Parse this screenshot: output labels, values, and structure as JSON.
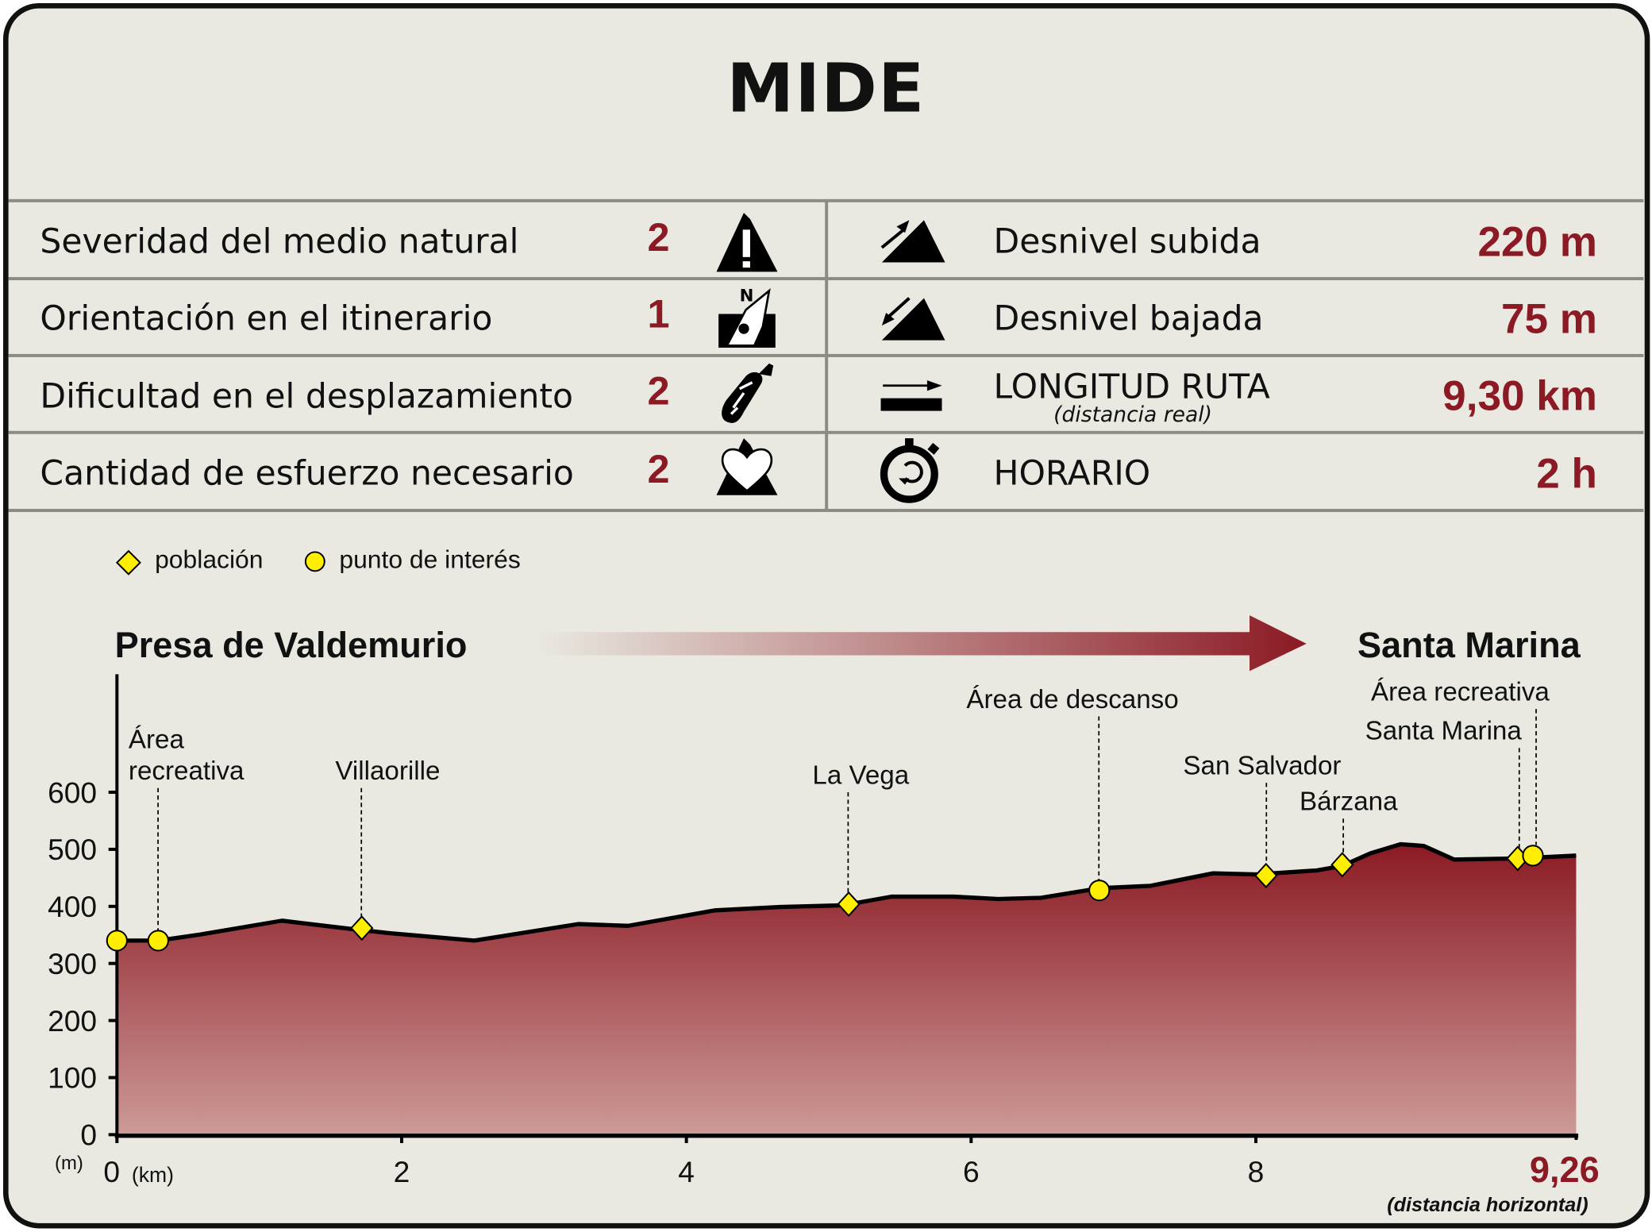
{
  "title": "MIDE",
  "mide_rows": [
    {
      "label": "Severidad del medio natural",
      "value": "2",
      "icon": "mountain-warning-icon"
    },
    {
      "label": "Orientación en el itinerario",
      "value": "1",
      "icon": "compass-orientation-icon"
    },
    {
      "label": "Dificultad en el desplazamiento",
      "value": "2",
      "icon": "boot-sole-icon"
    },
    {
      "label": "Cantidad de esfuerzo necesario",
      "value": "2",
      "icon": "heart-mountain-icon"
    }
  ],
  "route_rows": [
    {
      "label": "Desnivel subida",
      "value": "220 m",
      "icon": "ascent-slope-icon"
    },
    {
      "label": "Desnivel bajada",
      "value": "75 m",
      "icon": "descent-slope-icon"
    },
    {
      "label": "LONGITUD RUTA",
      "sublabel": "(distancia real)",
      "value": "9,30 km",
      "icon": "distance-arrow-icon"
    },
    {
      "label": "HORARIO",
      "value": "2 h",
      "icon": "stopwatch-icon"
    }
  ],
  "legend": {
    "town": "población",
    "poi": "punto de interés"
  },
  "colors": {
    "accent": "#8b1a24",
    "background": "#e9e9e1",
    "marker": "#ffee00",
    "grid": "#8c8c84"
  },
  "chart_data": {
    "type": "area",
    "start_label": "Presa de Valdemurio",
    "end_label": "Santa Marina",
    "y_unit": "(m)",
    "x_unit": "(km)",
    "x_end_label": "9,26",
    "x_end_note": "(distancia horizontal)",
    "x_ticks": [
      "0",
      "2",
      "4",
      "6",
      "8"
    ],
    "y_ticks": [
      "0",
      "100",
      "200",
      "300",
      "400",
      "500",
      "600"
    ],
    "xlim": [
      0,
      9.26
    ],
    "ylim": [
      0,
      600
    ],
    "profile": [
      [
        0,
        340
      ],
      [
        0.29,
        340
      ],
      [
        0.59,
        351
      ],
      [
        1.16,
        375
      ],
      [
        1.66,
        360
      ],
      [
        1.92,
        353
      ],
      [
        2.51,
        340
      ],
      [
        3.24,
        369
      ],
      [
        3.59,
        366
      ],
      [
        4.2,
        393
      ],
      [
        4.66,
        399
      ],
      [
        5.1,
        402
      ],
      [
        5.44,
        417
      ],
      [
        5.88,
        417
      ],
      [
        6.19,
        413
      ],
      [
        6.49,
        415
      ],
      [
        6.91,
        432
      ],
      [
        7.26,
        436
      ],
      [
        7.7,
        458
      ],
      [
        8.0,
        456
      ],
      [
        8.24,
        463
      ],
      [
        8.34,
        471
      ],
      [
        8.45,
        493
      ],
      [
        8.57,
        509
      ],
      [
        8.66,
        506
      ],
      [
        8.78,
        482
      ],
      [
        9.03,
        484
      ],
      [
        9.26,
        489
      ]
    ],
    "waypoints": [
      {
        "name": "",
        "type": "poi",
        "km": 0,
        "elev": 340
      },
      {
        "name": "Área recreativa",
        "type": "poi",
        "km": 0.29,
        "elev": 340
      },
      {
        "name": "Villaorille",
        "type": "town",
        "km": 1.72,
        "elev": 362
      },
      {
        "name": "La Vega",
        "type": "town",
        "km": 5.14,
        "elev": 404
      },
      {
        "name": "Área de descanso",
        "type": "poi",
        "km": 6.9,
        "elev": 428
      },
      {
        "name": "San Salvador",
        "type": "town",
        "km": 8.04,
        "elev": 454
      },
      {
        "name": "Bárzana",
        "type": "town",
        "km": 8.34,
        "elev": 473
      },
      {
        "name": "Santa Marina",
        "type": "town",
        "km": 9.03,
        "elev": 484
      },
      {
        "name": "Área recreativa",
        "type": "poi",
        "km": 9.09,
        "elev": 489
      }
    ]
  }
}
